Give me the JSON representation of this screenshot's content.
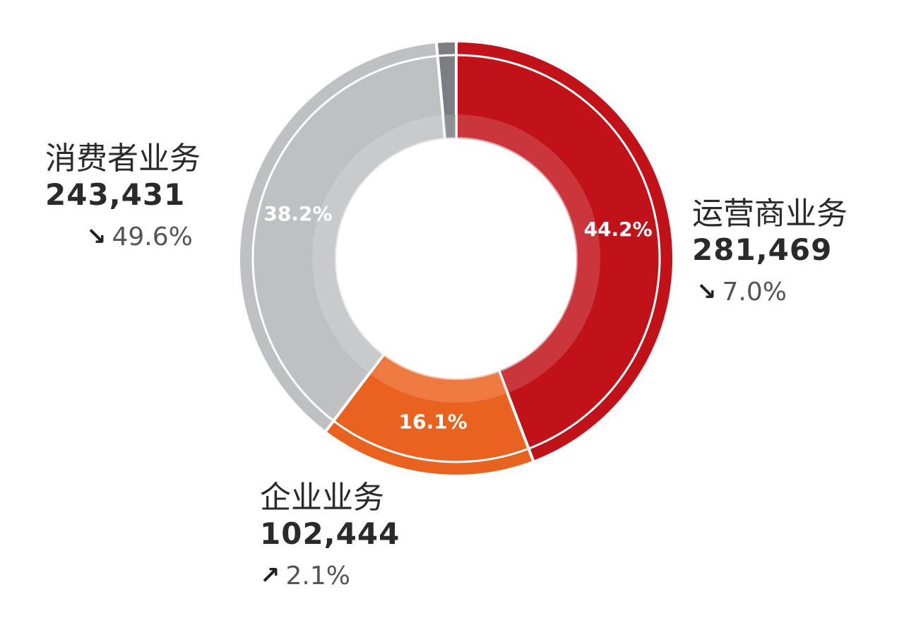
{
  "chart_data": {
    "type": "pie",
    "slices": [
      {
        "name": "运营商业务",
        "value": 281469,
        "percent_label": "44.2%",
        "change": "7.0%",
        "trend": "down",
        "color": "#c01218"
      },
      {
        "name": "企业业务",
        "value": 102444,
        "percent_label": "16.1%",
        "change": "2.1%",
        "trend": "up",
        "color": "#ea6220"
      },
      {
        "name": "消费者业务",
        "value": 243431,
        "percent_label": "38.2%",
        "change": "49.6%",
        "trend": "down",
        "color": "#bfc0c3"
      },
      {
        "name": "",
        "value": 9300,
        "percent_label": "",
        "change": "",
        "trend": "",
        "color": "#7a7d82"
      }
    ]
  },
  "labels": {
    "consumer": {
      "name": "消费者业务",
      "value": "243,431",
      "arrow": "↘",
      "change": "49.6%"
    },
    "carrier": {
      "name": "运营商业务",
      "value": "281,469",
      "arrow": "↘",
      "change": "7.0%"
    },
    "enterprise": {
      "name": "企业业务",
      "value": "102,444",
      "arrow": "↗",
      "change": "2.1%"
    }
  }
}
